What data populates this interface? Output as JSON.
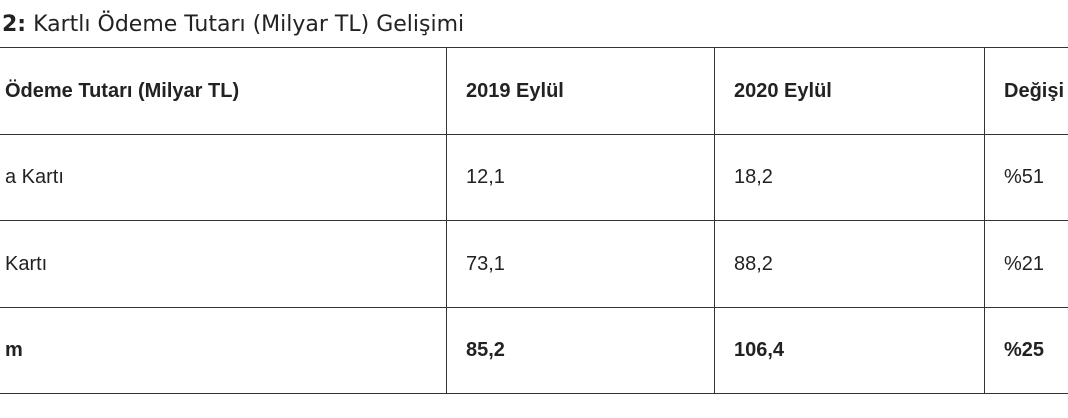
{
  "title": {
    "label": "2:",
    "text": "Kartlı Ödeme Tutarı (Milyar TL) Gelişimi"
  },
  "table": {
    "header": [
      "Ödeme Tutarı (Milyar TL)",
      "2019 Eylül",
      "2020 Eylül",
      "Değişi"
    ],
    "rows": [
      [
        "a Kartı",
        "12,1",
        "18,2",
        "%51"
      ],
      [
        "Kartı",
        "73,1",
        "88,2",
        "%21"
      ],
      [
        "m",
        "85,2",
        "106,4",
        "%25"
      ]
    ]
  }
}
